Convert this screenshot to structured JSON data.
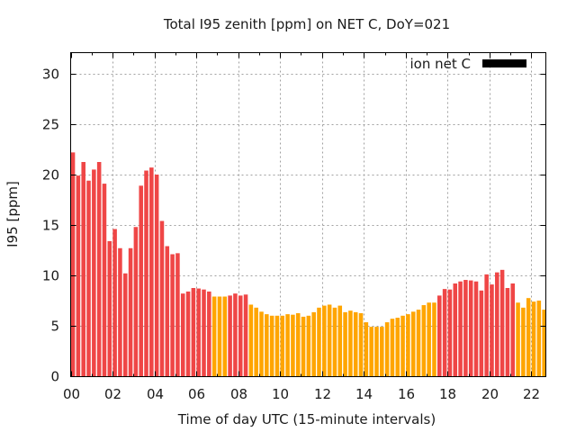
{
  "chart_data": {
    "type": "bar",
    "title": "Total I95 zenith [ppm] on NET C, DoY=021",
    "xlabel": "Time of day UTC (15-minute intervals)",
    "ylabel": "I95 [ppm]",
    "ylim": [
      0,
      32.3
    ],
    "xlim_hours": [
      0,
      22.75
    ],
    "grid": true,
    "legend": {
      "label": "ion net C",
      "placement": "top-right",
      "swatch_color": "#000000"
    },
    "y_ticks": [
      "0",
      "5",
      "10",
      "15",
      "20",
      "25",
      "30"
    ],
    "y_tick_values": [
      0,
      5,
      10,
      15,
      20,
      25,
      30
    ],
    "x_ticks": [
      "00",
      "02",
      "04",
      "06",
      "08",
      "10",
      "12",
      "14",
      "16",
      "18",
      "20",
      "22"
    ],
    "x_tick_values": [
      0,
      2,
      4,
      6,
      8,
      10,
      12,
      14,
      16,
      18,
      20,
      22
    ],
    "interval_minutes": 15,
    "colors": {
      "high": "#ef4646",
      "moderate": "#ffa500"
    },
    "values": [
      22.2,
      19.9,
      21.25,
      19.4,
      20.5,
      21.25,
      19.1,
      13.4,
      14.6,
      12.7,
      10.2,
      12.7,
      14.8,
      18.9,
      20.4,
      20.7,
      20.0,
      15.4,
      12.9,
      12.1,
      12.2,
      8.2,
      8.4,
      8.75,
      8.7,
      8.6,
      8.4,
      7.9,
      7.9,
      7.9,
      8.0,
      8.2,
      8.0,
      8.1,
      7.1,
      6.8,
      6.4,
      6.15,
      6.0,
      6.0,
      6.0,
      6.15,
      6.1,
      6.25,
      5.9,
      6.0,
      6.35,
      6.8,
      7.0,
      7.1,
      6.8,
      7.0,
      6.35,
      6.5,
      6.35,
      6.25,
      5.35,
      4.9,
      4.9,
      4.9,
      5.35,
      5.7,
      5.8,
      6.0,
      6.15,
      6.4,
      6.6,
      7.05,
      7.3,
      7.3,
      8.0,
      8.65,
      8.6,
      9.2,
      9.4,
      9.55,
      9.5,
      9.4,
      8.5,
      10.1,
      9.1,
      10.3,
      10.55,
      8.75,
      9.2,
      7.3,
      6.8,
      7.75,
      7.4,
      7.5,
      6.6,
      7.5
    ],
    "categories_color": [
      "high",
      "high",
      "high",
      "high",
      "high",
      "high",
      "high",
      "high",
      "high",
      "high",
      "high",
      "high",
      "high",
      "high",
      "high",
      "high",
      "high",
      "high",
      "high",
      "high",
      "high",
      "high",
      "high",
      "high",
      "high",
      "high",
      "high",
      "moderate",
      "moderate",
      "moderate",
      "high",
      "high",
      "high",
      "high",
      "moderate",
      "moderate",
      "moderate",
      "moderate",
      "moderate",
      "moderate",
      "moderate",
      "moderate",
      "moderate",
      "moderate",
      "moderate",
      "moderate",
      "moderate",
      "moderate",
      "moderate",
      "moderate",
      "moderate",
      "moderate",
      "moderate",
      "moderate",
      "moderate",
      "moderate",
      "moderate",
      "moderate",
      "moderate",
      "moderate",
      "moderate",
      "moderate",
      "moderate",
      "moderate",
      "moderate",
      "moderate",
      "moderate",
      "moderate",
      "moderate",
      "moderate",
      "high",
      "high",
      "high",
      "high",
      "high",
      "high",
      "high",
      "high",
      "high",
      "high",
      "high",
      "high",
      "high",
      "high",
      "high",
      "moderate",
      "moderate",
      "moderate",
      "moderate",
      "moderate",
      "moderate",
      "moderate"
    ]
  }
}
